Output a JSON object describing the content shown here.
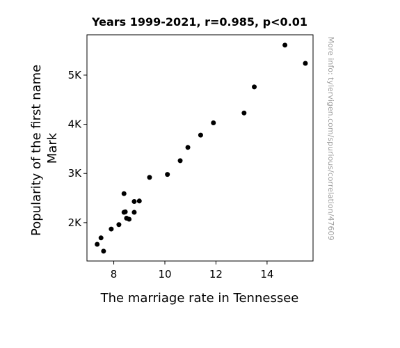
{
  "chart_data": {
    "type": "scatter",
    "title": "Years 1999-2021, r=0.985, p<0.01",
    "xlabel": "The marriage rate in Tennessee",
    "ylabel": [
      "Popularity of the first name",
      "Mark"
    ],
    "xlim": [
      6.95,
      15.8
    ],
    "ylim": [
      1220,
      5820
    ],
    "x_ticks": [
      {
        "value": 8,
        "label": "8"
      },
      {
        "value": 10,
        "label": "10"
      },
      {
        "value": 12,
        "label": "12"
      },
      {
        "value": 14,
        "label": "14"
      }
    ],
    "y_ticks": [
      {
        "value": 2000,
        "label": "2K"
      },
      {
        "value": 3000,
        "label": "3K"
      },
      {
        "value": 4000,
        "label": "4K"
      },
      {
        "value": 5000,
        "label": "5K"
      }
    ],
    "grid": false,
    "marker_color": "#000000",
    "points": [
      {
        "x": 14.7,
        "y": 5610
      },
      {
        "x": 15.5,
        "y": 5240
      },
      {
        "x": 13.5,
        "y": 4760
      },
      {
        "x": 13.1,
        "y": 4230
      },
      {
        "x": 11.9,
        "y": 4030
      },
      {
        "x": 11.4,
        "y": 3780
      },
      {
        "x": 10.9,
        "y": 3530
      },
      {
        "x": 10.6,
        "y": 3260
      },
      {
        "x": 10.1,
        "y": 2980
      },
      {
        "x": 9.4,
        "y": 2920
      },
      {
        "x": 9.0,
        "y": 2440
      },
      {
        "x": 8.8,
        "y": 2430
      },
      {
        "x": 8.4,
        "y": 2590
      },
      {
        "x": 8.4,
        "y": 2210
      },
      {
        "x": 8.45,
        "y": 2220
      },
      {
        "x": 8.8,
        "y": 2210
      },
      {
        "x": 8.5,
        "y": 2090
      },
      {
        "x": 8.6,
        "y": 2070
      },
      {
        "x": 8.2,
        "y": 1960
      },
      {
        "x": 7.9,
        "y": 1870
      },
      {
        "x": 7.5,
        "y": 1690
      },
      {
        "x": 7.35,
        "y": 1560
      },
      {
        "x": 7.6,
        "y": 1420
      }
    ]
  },
  "watermark": "More info: tylervigen.com/spurious/correlation/47609"
}
